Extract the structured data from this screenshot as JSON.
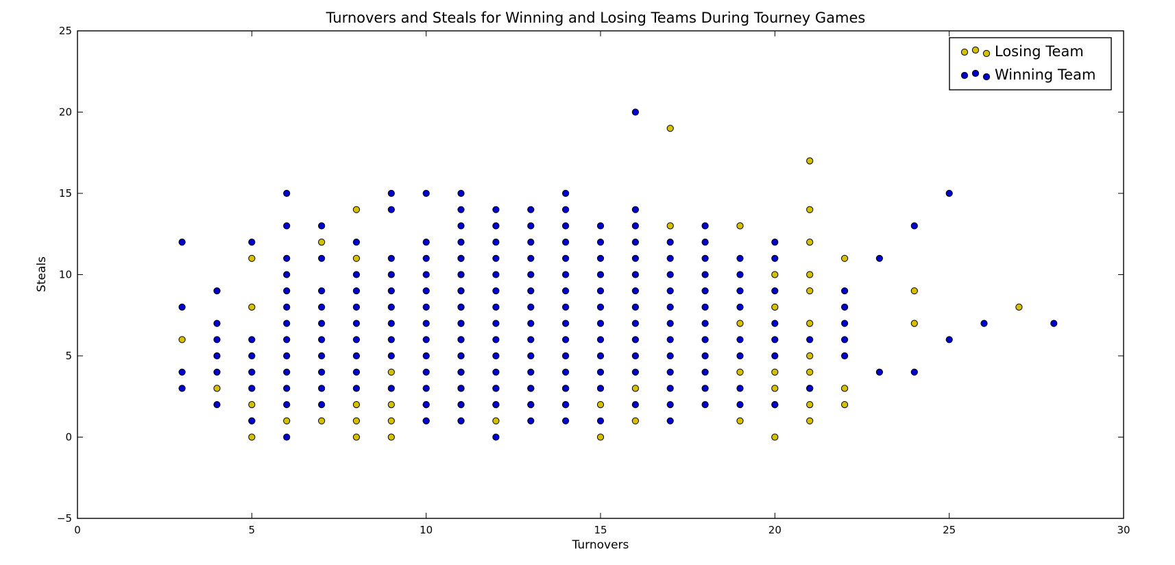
{
  "chart_data": {
    "type": "scatter",
    "title": "Turnovers and Steals for Winning and Losing Teams During Tourney Games",
    "xlabel": "Turnovers",
    "ylabel": "Steals",
    "xlim": [
      0,
      30
    ],
    "ylim": [
      -5,
      25
    ],
    "xticks": [
      0,
      5,
      10,
      15,
      20,
      25,
      30
    ],
    "yticks": [
      -5,
      0,
      5,
      10,
      15,
      20,
      25
    ],
    "grid": false,
    "legend_position": "top-right",
    "series": [
      {
        "name": "Losing Team",
        "color": "#d4c000",
        "points": [
          [
            3,
            6
          ],
          [
            4,
            3
          ],
          [
            5,
            0.0
          ],
          [
            5,
            1
          ],
          [
            5,
            2
          ],
          [
            5,
            8
          ],
          [
            5,
            11
          ],
          [
            6,
            1
          ],
          [
            7,
            1
          ],
          [
            7,
            12
          ],
          [
            8,
            0
          ],
          [
            8,
            1
          ],
          [
            8,
            2
          ],
          [
            8,
            11
          ],
          [
            8,
            14
          ],
          [
            9,
            0
          ],
          [
            9,
            1
          ],
          [
            9,
            2
          ],
          [
            9,
            4
          ],
          [
            10,
            1
          ],
          [
            10,
            2
          ],
          [
            11,
            1
          ],
          [
            11,
            2
          ],
          [
            11,
            3
          ],
          [
            11,
            4
          ],
          [
            11,
            5
          ],
          [
            11,
            6
          ],
          [
            11,
            7
          ],
          [
            11,
            8
          ],
          [
            11,
            9
          ],
          [
            11,
            10
          ],
          [
            11,
            11
          ],
          [
            12,
            1
          ],
          [
            12,
            2
          ],
          [
            12,
            3
          ],
          [
            13,
            2
          ],
          [
            13,
            3
          ],
          [
            14,
            2
          ],
          [
            14,
            3
          ],
          [
            15,
            0
          ],
          [
            15,
            2
          ],
          [
            16,
            1
          ],
          [
            16,
            3
          ],
          [
            17,
            13
          ],
          [
            17,
            19
          ],
          [
            19,
            1
          ],
          [
            19,
            4
          ],
          [
            19,
            7
          ],
          [
            19,
            13
          ],
          [
            20,
            0
          ],
          [
            20,
            2
          ],
          [
            20,
            3
          ],
          [
            20,
            4
          ],
          [
            20,
            8
          ],
          [
            20,
            10
          ],
          [
            21,
            1
          ],
          [
            21,
            2
          ],
          [
            21,
            3
          ],
          [
            21,
            4
          ],
          [
            21,
            5
          ],
          [
            21,
            7
          ],
          [
            21,
            9
          ],
          [
            21,
            10
          ],
          [
            21,
            12
          ],
          [
            21,
            14
          ],
          [
            21,
            17
          ],
          [
            22,
            2
          ],
          [
            22,
            3
          ],
          [
            22,
            11
          ],
          [
            24,
            7
          ],
          [
            24,
            9
          ],
          [
            27,
            8
          ]
        ]
      },
      {
        "name": "Winning Team",
        "color": "#0000cc",
        "points": [
          [
            3,
            3
          ],
          [
            3,
            4
          ],
          [
            3,
            8
          ],
          [
            3,
            12
          ],
          [
            4,
            2
          ],
          [
            4,
            4
          ],
          [
            4,
            5
          ],
          [
            4,
            6
          ],
          [
            4,
            7
          ],
          [
            4,
            9
          ],
          [
            5,
            1
          ],
          [
            5,
            3
          ],
          [
            5,
            4
          ],
          [
            5,
            5
          ],
          [
            5,
            6
          ],
          [
            5,
            12
          ],
          [
            6,
            0
          ],
          [
            6,
            2
          ],
          [
            6,
            3
          ],
          [
            6,
            4
          ],
          [
            6,
            5
          ],
          [
            6,
            6
          ],
          [
            6,
            7
          ],
          [
            6,
            8
          ],
          [
            6,
            9
          ],
          [
            6,
            10
          ],
          [
            6,
            11
          ],
          [
            6,
            13
          ],
          [
            6,
            15
          ],
          [
            7,
            2
          ],
          [
            7,
            3
          ],
          [
            7,
            4
          ],
          [
            7,
            5
          ],
          [
            7,
            6
          ],
          [
            7,
            7
          ],
          [
            7,
            8
          ],
          [
            7,
            9
          ],
          [
            7,
            11
          ],
          [
            7,
            13
          ],
          [
            8,
            3
          ],
          [
            8,
            4
          ],
          [
            8,
            5
          ],
          [
            8,
            6
          ],
          [
            8,
            7
          ],
          [
            8,
            8
          ],
          [
            8,
            9
          ],
          [
            8,
            10
          ],
          [
            8,
            12
          ],
          [
            9,
            3
          ],
          [
            9,
            5
          ],
          [
            9,
            6
          ],
          [
            9,
            7
          ],
          [
            9,
            8
          ],
          [
            9,
            9
          ],
          [
            9,
            10
          ],
          [
            9,
            11
          ],
          [
            9,
            14
          ],
          [
            9,
            15
          ],
          [
            10,
            1
          ],
          [
            10,
            2
          ],
          [
            10,
            3
          ],
          [
            10,
            4
          ],
          [
            10,
            5
          ],
          [
            10,
            6
          ],
          [
            10,
            7
          ],
          [
            10,
            8
          ],
          [
            10,
            9
          ],
          [
            10,
            10
          ],
          [
            10,
            11
          ],
          [
            10,
            12
          ],
          [
            10,
            15
          ],
          [
            11,
            1
          ],
          [
            11,
            2
          ],
          [
            11,
            3
          ],
          [
            11,
            4
          ],
          [
            11,
            5
          ],
          [
            11,
            6
          ],
          [
            11,
            7
          ],
          [
            11,
            8
          ],
          [
            11,
            9
          ],
          [
            11,
            10
          ],
          [
            11,
            11
          ],
          [
            11,
            12
          ],
          [
            11,
            13
          ],
          [
            11,
            14
          ],
          [
            11,
            15
          ],
          [
            12,
            0
          ],
          [
            12,
            2
          ],
          [
            12,
            3
          ],
          [
            12,
            4
          ],
          [
            12,
            5
          ],
          [
            12,
            6
          ],
          [
            12,
            7
          ],
          [
            12,
            8
          ],
          [
            12,
            9
          ],
          [
            12,
            10
          ],
          [
            12,
            11
          ],
          [
            12,
            12
          ],
          [
            12,
            13
          ],
          [
            12,
            14
          ],
          [
            13,
            1
          ],
          [
            13,
            2
          ],
          [
            13,
            3
          ],
          [
            13,
            4
          ],
          [
            13,
            5
          ],
          [
            13,
            6
          ],
          [
            13,
            7
          ],
          [
            13,
            8
          ],
          [
            13,
            9
          ],
          [
            13,
            10
          ],
          [
            13,
            11
          ],
          [
            13,
            12
          ],
          [
            13,
            13
          ],
          [
            13,
            14
          ],
          [
            14,
            1
          ],
          [
            14,
            2
          ],
          [
            14,
            3
          ],
          [
            14,
            4
          ],
          [
            14,
            5
          ],
          [
            14,
            6
          ],
          [
            14,
            7
          ],
          [
            14,
            8
          ],
          [
            14,
            9
          ],
          [
            14,
            10
          ],
          [
            14,
            11
          ],
          [
            14,
            12
          ],
          [
            14,
            13
          ],
          [
            14,
            14
          ],
          [
            14,
            15
          ],
          [
            15,
            1
          ],
          [
            15,
            3
          ],
          [
            15,
            4
          ],
          [
            15,
            5
          ],
          [
            15,
            6
          ],
          [
            15,
            7
          ],
          [
            15,
            8
          ],
          [
            15,
            9
          ],
          [
            15,
            10
          ],
          [
            15,
            11
          ],
          [
            15,
            12
          ],
          [
            15,
            13
          ],
          [
            16,
            2
          ],
          [
            16,
            4
          ],
          [
            16,
            5
          ],
          [
            16,
            6
          ],
          [
            16,
            7
          ],
          [
            16,
            8
          ],
          [
            16,
            9
          ],
          [
            16,
            10
          ],
          [
            16,
            11
          ],
          [
            16,
            12
          ],
          [
            16,
            13
          ],
          [
            16,
            14
          ],
          [
            16,
            20
          ],
          [
            17,
            1
          ],
          [
            17,
            2
          ],
          [
            17,
            3
          ],
          [
            17,
            4
          ],
          [
            17,
            5
          ],
          [
            17,
            6
          ],
          [
            17,
            7
          ],
          [
            17,
            8
          ],
          [
            17,
            9
          ],
          [
            17,
            10
          ],
          [
            17,
            11
          ],
          [
            17,
            12
          ],
          [
            18,
            2
          ],
          [
            18,
            3
          ],
          [
            18,
            4
          ],
          [
            18,
            5
          ],
          [
            18,
            6
          ],
          [
            18,
            7
          ],
          [
            18,
            8
          ],
          [
            18,
            9
          ],
          [
            18,
            10
          ],
          [
            18,
            11
          ],
          [
            18,
            12
          ],
          [
            18,
            13
          ],
          [
            19,
            2
          ],
          [
            19,
            3
          ],
          [
            19,
            5
          ],
          [
            19,
            6
          ],
          [
            19,
            8
          ],
          [
            19,
            9
          ],
          [
            19,
            10
          ],
          [
            19,
            11
          ],
          [
            20,
            2
          ],
          [
            20,
            5
          ],
          [
            20,
            6
          ],
          [
            20,
            7
          ],
          [
            20,
            9
          ],
          [
            20,
            11
          ],
          [
            20,
            12
          ],
          [
            21,
            3
          ],
          [
            21,
            6
          ],
          [
            22,
            5
          ],
          [
            22,
            6
          ],
          [
            22,
            7
          ],
          [
            22,
            8
          ],
          [
            22,
            9
          ],
          [
            23,
            4
          ],
          [
            23,
            11
          ],
          [
            24,
            4
          ],
          [
            24,
            13
          ],
          [
            25,
            6
          ],
          [
            25,
            15
          ],
          [
            26,
            7
          ],
          [
            28,
            7
          ]
        ]
      }
    ]
  }
}
